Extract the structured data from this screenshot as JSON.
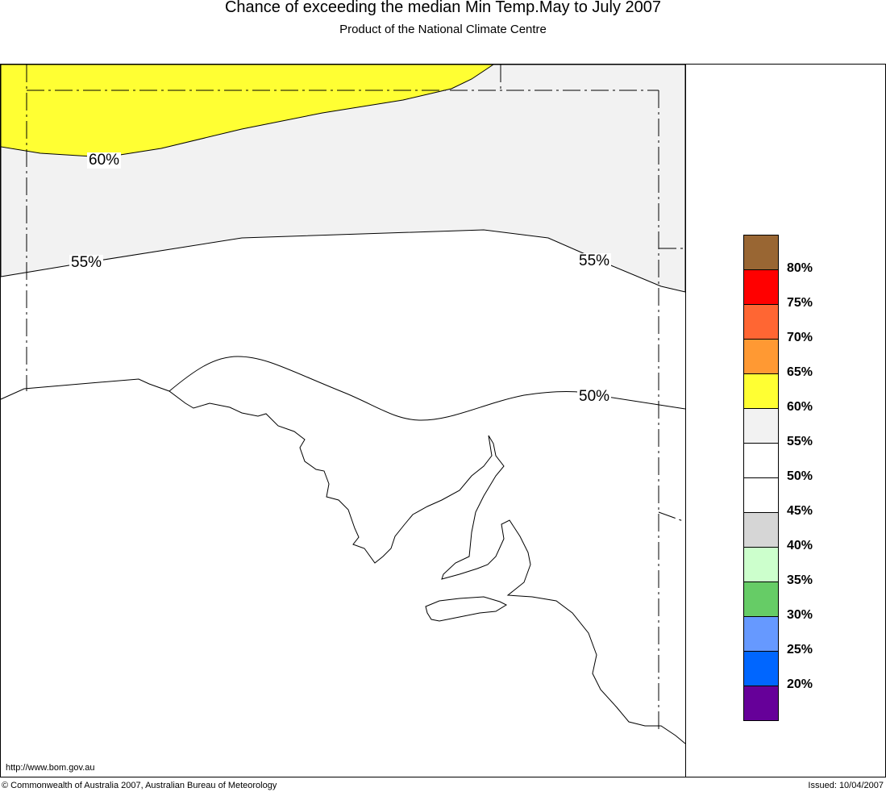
{
  "header": {
    "title": "Chance of exceeding the median Min Temp.May to July 2007",
    "subtitle": "Product of the National Climate Centre"
  },
  "contours": [
    {
      "label": "60%"
    },
    {
      "label": "55%"
    },
    {
      "label": "55%"
    },
    {
      "label": "50%"
    }
  ],
  "legend": {
    "colors": [
      "#996633",
      "#ff0000",
      "#ff6633",
      "#ff9933",
      "#ffff33",
      "#f2f2f2",
      "#ffffff",
      "#ffffff",
      "#d6d6d6",
      "#ccffcc",
      "#66cc66",
      "#6699ff",
      "#0066ff",
      "#660099"
    ],
    "labels": [
      "80%",
      "75%",
      "70%",
      "65%",
      "60%",
      "55%",
      "50%",
      "45%",
      "40%",
      "35%",
      "30%",
      "25%",
      "20%"
    ]
  },
  "footer": {
    "url": "http://www.bom.gov.au",
    "copyright": "© Commonwealth of Australia 2007, Australian Bureau of Meteorology",
    "issued": "Issued: 10/04/2007"
  }
}
